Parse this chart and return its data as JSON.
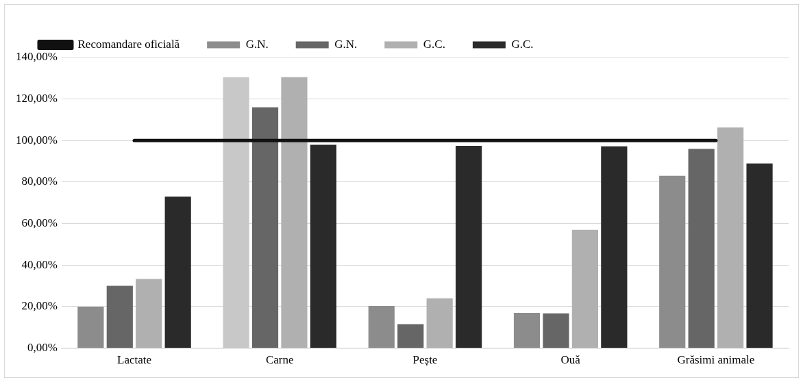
{
  "chart_data": {
    "type": "bar",
    "categories": [
      "Lactate",
      "Carne",
      "Pește",
      "Ouă",
      "Grăsimi animale"
    ],
    "series": [
      {
        "name": "G.N.",
        "color": "#8c8c8c",
        "colors": [
          "#8c8c8c",
          "#c8c8c8",
          "#8c8c8c",
          "#8c8c8c",
          "#8c8c8c"
        ],
        "values": [
          20,
          130.5,
          20.3,
          17,
          83
        ]
      },
      {
        "name": "G.N.",
        "color": "#666666",
        "values": [
          30,
          116,
          11.6,
          16.8,
          96
        ]
      },
      {
        "name": "G.C.",
        "color": "#b0b0b0",
        "values": [
          33.3,
          130.5,
          24,
          57,
          106.3
        ]
      },
      {
        "name": "G.C.",
        "color": "#2a2a2a",
        "values": [
          73,
          98,
          97.5,
          97.2,
          89
        ]
      },
      {
        "name": "Recomandare oficială",
        "type": "line",
        "color": "#111111",
        "values": [
          100,
          100,
          100,
          100,
          100
        ]
      }
    ],
    "ylim": [
      0,
      140
    ],
    "yticks": [
      {
        "value": 0,
        "label": "0,00%"
      },
      {
        "value": 20,
        "label": "20,00%"
      },
      {
        "value": 40,
        "label": "40,00%"
      },
      {
        "value": 60,
        "label": "60,00%"
      },
      {
        "value": 80,
        "label": "80,00%"
      },
      {
        "value": 100,
        "label": "100,00%"
      },
      {
        "value": 120,
        "label": "120,00%"
      },
      {
        "value": 140,
        "label": "140,00%"
      }
    ],
    "grid": "y",
    "legend": "top",
    "marker": "none"
  }
}
